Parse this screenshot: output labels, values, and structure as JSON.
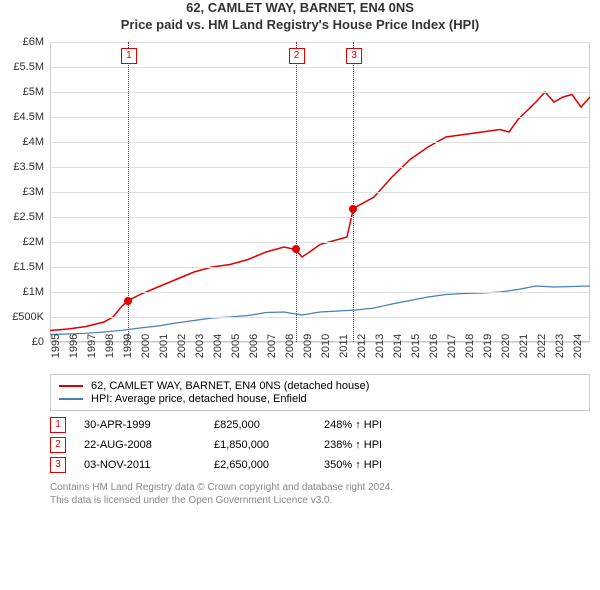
{
  "title_line1": "62, CAMLET WAY, BARNET, EN4 0NS",
  "title_line2": "Price paid vs. HM Land Registry's House Price Index (HPI)",
  "chart": {
    "type": "line",
    "background_color": "#ffffff",
    "grid_color": "#e0e0e0",
    "axis_border_color": "#cccccc",
    "x_year_min": 1995,
    "x_year_max": 2025,
    "x_tick_years": [
      1995,
      1996,
      1997,
      1998,
      1999,
      2000,
      2001,
      2002,
      2003,
      2004,
      2005,
      2006,
      2007,
      2008,
      2009,
      2010,
      2011,
      2012,
      2013,
      2014,
      2015,
      2016,
      2017,
      2018,
      2019,
      2020,
      2021,
      2022,
      2023,
      2024
    ],
    "y_min": 0,
    "y_max": 6000000,
    "y_tick_step": 500000,
    "y_tick_labels": [
      "£0",
      "£500K",
      "£1M",
      "£1.5M",
      "£2M",
      "£2.5M",
      "£3M",
      "£3.5M",
      "£4M",
      "£4.5M",
      "£5M",
      "£5.5M",
      "£6M"
    ],
    "y_label_fontsize": 11,
    "x_label_fontsize": 11,
    "series": [
      {
        "name": "price_paid",
        "label": "62, CAMLET WAY, BARNET, EN4 0NS (detached house)",
        "color": "#e00000",
        "line_width": 1.5,
        "data": [
          [
            1995.0,
            230000
          ],
          [
            1996.0,
            260000
          ],
          [
            1997.0,
            310000
          ],
          [
            1998.0,
            400000
          ],
          [
            1998.5,
            500000
          ],
          [
            1999.0,
            720000
          ],
          [
            1999.33,
            825000
          ],
          [
            2000.0,
            950000
          ],
          [
            2001.0,
            1100000
          ],
          [
            2002.0,
            1250000
          ],
          [
            2003.0,
            1400000
          ],
          [
            2004.0,
            1500000
          ],
          [
            2005.0,
            1550000
          ],
          [
            2006.0,
            1650000
          ],
          [
            2007.0,
            1800000
          ],
          [
            2008.0,
            1900000
          ],
          [
            2008.64,
            1850000
          ],
          [
            2009.0,
            1700000
          ],
          [
            2009.5,
            1820000
          ],
          [
            2010.0,
            1950000
          ],
          [
            2010.5,
            2000000
          ],
          [
            2011.0,
            2050000
          ],
          [
            2011.5,
            2100000
          ],
          [
            2011.84,
            2650000
          ],
          [
            2012.0,
            2700000
          ],
          [
            2013.0,
            2900000
          ],
          [
            2014.0,
            3300000
          ],
          [
            2015.0,
            3650000
          ],
          [
            2016.0,
            3900000
          ],
          [
            2017.0,
            4100000
          ],
          [
            2018.0,
            4150000
          ],
          [
            2019.0,
            4200000
          ],
          [
            2020.0,
            4250000
          ],
          [
            2020.5,
            4200000
          ],
          [
            2021.0,
            4450000
          ],
          [
            2022.0,
            4800000
          ],
          [
            2022.5,
            5000000
          ],
          [
            2023.0,
            4800000
          ],
          [
            2023.5,
            4900000
          ],
          [
            2024.0,
            4950000
          ],
          [
            2024.5,
            4700000
          ],
          [
            2025.0,
            4900000
          ]
        ]
      },
      {
        "name": "hpi",
        "label": "HPI: Average price, detached house, Enfield",
        "color": "#4a7fb5",
        "line_width": 1.2,
        "data": [
          [
            1995.0,
            150000
          ],
          [
            1996.0,
            160000
          ],
          [
            1997.0,
            175000
          ],
          [
            1998.0,
            200000
          ],
          [
            1999.0,
            235000
          ],
          [
            2000.0,
            280000
          ],
          [
            2001.0,
            320000
          ],
          [
            2002.0,
            380000
          ],
          [
            2003.0,
            430000
          ],
          [
            2004.0,
            480000
          ],
          [
            2005.0,
            500000
          ],
          [
            2006.0,
            530000
          ],
          [
            2007.0,
            590000
          ],
          [
            2008.0,
            600000
          ],
          [
            2009.0,
            540000
          ],
          [
            2010.0,
            600000
          ],
          [
            2011.0,
            620000
          ],
          [
            2012.0,
            640000
          ],
          [
            2013.0,
            680000
          ],
          [
            2014.0,
            760000
          ],
          [
            2015.0,
            830000
          ],
          [
            2016.0,
            900000
          ],
          [
            2017.0,
            950000
          ],
          [
            2018.0,
            970000
          ],
          [
            2019.0,
            980000
          ],
          [
            2020.0,
            1000000
          ],
          [
            2021.0,
            1050000
          ],
          [
            2022.0,
            1120000
          ],
          [
            2023.0,
            1100000
          ],
          [
            2024.0,
            1110000
          ],
          [
            2025.0,
            1120000
          ]
        ]
      }
    ],
    "markers": [
      {
        "index": "1",
        "year": 1999.33,
        "value": 825000
      },
      {
        "index": "2",
        "year": 2008.64,
        "value": 1850000
      },
      {
        "index": "3",
        "year": 2011.84,
        "value": 2650000
      }
    ],
    "marker_line_color": "#e00000",
    "marker_dot_color": "#e00000"
  },
  "legend_border_color": "#cccccc",
  "transactions": [
    {
      "index": "1",
      "date": "30-APR-1999",
      "price": "£825,000",
      "pct": "248% ↑ HPI"
    },
    {
      "index": "2",
      "date": "22-AUG-2008",
      "price": "£1,850,000",
      "pct": "238% ↑ HPI"
    },
    {
      "index": "3",
      "date": "03-NOV-2011",
      "price": "£2,650,000",
      "pct": "350% ↑ HPI"
    }
  ],
  "footer_line1": "Contains HM Land Registry data © Crown copyright and database right 2024.",
  "footer_line2": "This data is licensed under the Open Government Licence v3.0.",
  "footer_color": "#888888"
}
